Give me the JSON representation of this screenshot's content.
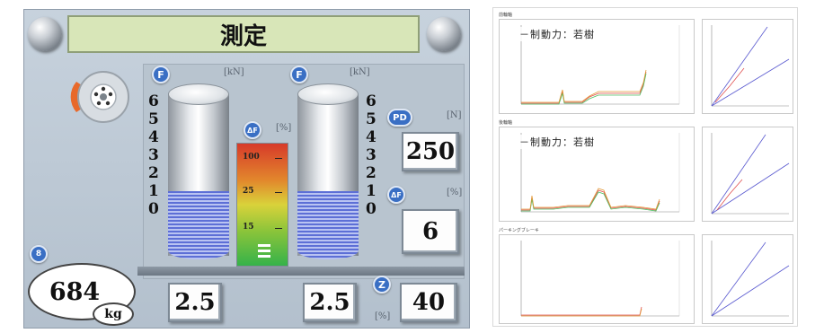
{
  "tester": {
    "title": "測定",
    "badges": {
      "f_left": "F",
      "f_right": "F",
      "delta_f_gauge": "ΔF",
      "pd": "PD",
      "delta_f": "ΔF",
      "z": "Z",
      "weight": "8"
    },
    "units": {
      "kn_left": "[kN]",
      "kn_right": "[kN]",
      "pct_gauge": "[%]",
      "n": "[N]",
      "pct_delta": "[%]",
      "pct_z": "[%]"
    },
    "scale_left": [
      "6",
      "5",
      "4",
      "3",
      "2",
      "1",
      "0"
    ],
    "scale_right": [
      "6",
      "5",
      "4",
      "3",
      "2",
      "1",
      "0"
    ],
    "gauge_labels": [
      "100",
      "25",
      "15"
    ],
    "values": {
      "pd": "250",
      "delta_f": "6",
      "force_left": "2.5",
      "force_right": "2.5",
      "z": "40",
      "weight": "684",
      "weight_unit": "kg"
    },
    "colors": {
      "coil": "#5d6fd6",
      "gauge_top": "#d73a2a",
      "gauge_bottom": "#35b24a",
      "screen_title_bg": "#d8e6b8"
    }
  },
  "report": {
    "sections": [
      {
        "title": "前輪軸",
        "overlay": "－制動力：若樹"
      },
      {
        "title": "後輪軸",
        "overlay": "－制動力：若樹"
      },
      {
        "title": "パーキングブレーキ",
        "overlay": ""
      }
    ],
    "colors": {
      "trace_red": "#e05050",
      "trace_green": "#4bbf60",
      "trace_orange": "#e39a3a",
      "ref_blue": "#5a5ad0"
    }
  }
}
